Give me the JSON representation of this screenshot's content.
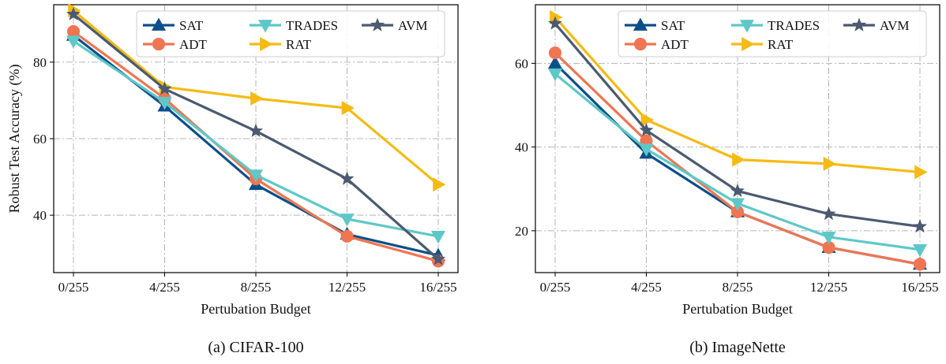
{
  "chart_data": [
    {
      "type": "line",
      "panel": "(a) CIFAR-100",
      "xlabel": "Pertubation Budget",
      "ylabel": "Robust Test Accuracy (%)",
      "categories": [
        "0/255",
        "4/255",
        "8/255",
        "12/255",
        "16/255"
      ],
      "yticks": [
        40,
        60,
        80
      ],
      "ylim": [
        25,
        95
      ],
      "grid": true,
      "legend": "top-center",
      "series": [
        {
          "name": "SAT",
          "color": "#0b4f8a",
          "marker": "triangle-up",
          "values": [
            87.0,
            68.5,
            48.0,
            35.0,
            29.5
          ]
        },
        {
          "name": "ADT",
          "color": "#f07552",
          "marker": "circle",
          "values": [
            88.0,
            70.5,
            49.5,
            34.5,
            28.0
          ]
        },
        {
          "name": "TRADES",
          "color": "#5ec8c8",
          "marker": "triangle-down",
          "values": [
            85.5,
            69.5,
            50.5,
            39.0,
            34.5
          ]
        },
        {
          "name": "RAT",
          "color": "#f5bb14",
          "marker": "triangle-right",
          "values": [
            93.5,
            73.5,
            70.5,
            68.0,
            48.0
          ]
        },
        {
          "name": "AVM",
          "color": "#4b5a70",
          "marker": "star",
          "values": [
            92.5,
            73.0,
            62.0,
            49.5,
            28.5
          ]
        }
      ]
    },
    {
      "type": "line",
      "panel": "(b) ImageNette",
      "xlabel": "Pertubation Budget",
      "ylabel": "",
      "categories": [
        "0/255",
        "4/255",
        "8/255",
        "12/255",
        "16/255"
      ],
      "yticks": [
        20,
        40,
        60
      ],
      "ylim": [
        10,
        74
      ],
      "grid": true,
      "legend": "top-center",
      "series": [
        {
          "name": "SAT",
          "color": "#0b4f8a",
          "marker": "triangle-up",
          "values": [
            60.0,
            38.5,
            24.5,
            16.0,
            12.0
          ]
        },
        {
          "name": "ADT",
          "color": "#f07552",
          "marker": "circle",
          "values": [
            62.5,
            41.5,
            24.5,
            16.0,
            12.0
          ]
        },
        {
          "name": "TRADES",
          "color": "#5ec8c8",
          "marker": "triangle-down",
          "values": [
            57.5,
            39.5,
            26.5,
            18.5,
            15.5
          ]
        },
        {
          "name": "RAT",
          "color": "#f5bb14",
          "marker": "triangle-right",
          "values": [
            71.0,
            46.5,
            37.0,
            36.0,
            34.0
          ]
        },
        {
          "name": "AVM",
          "color": "#4b5a70",
          "marker": "star",
          "values": [
            69.5,
            44.0,
            29.5,
            24.0,
            21.0
          ]
        }
      ]
    }
  ]
}
